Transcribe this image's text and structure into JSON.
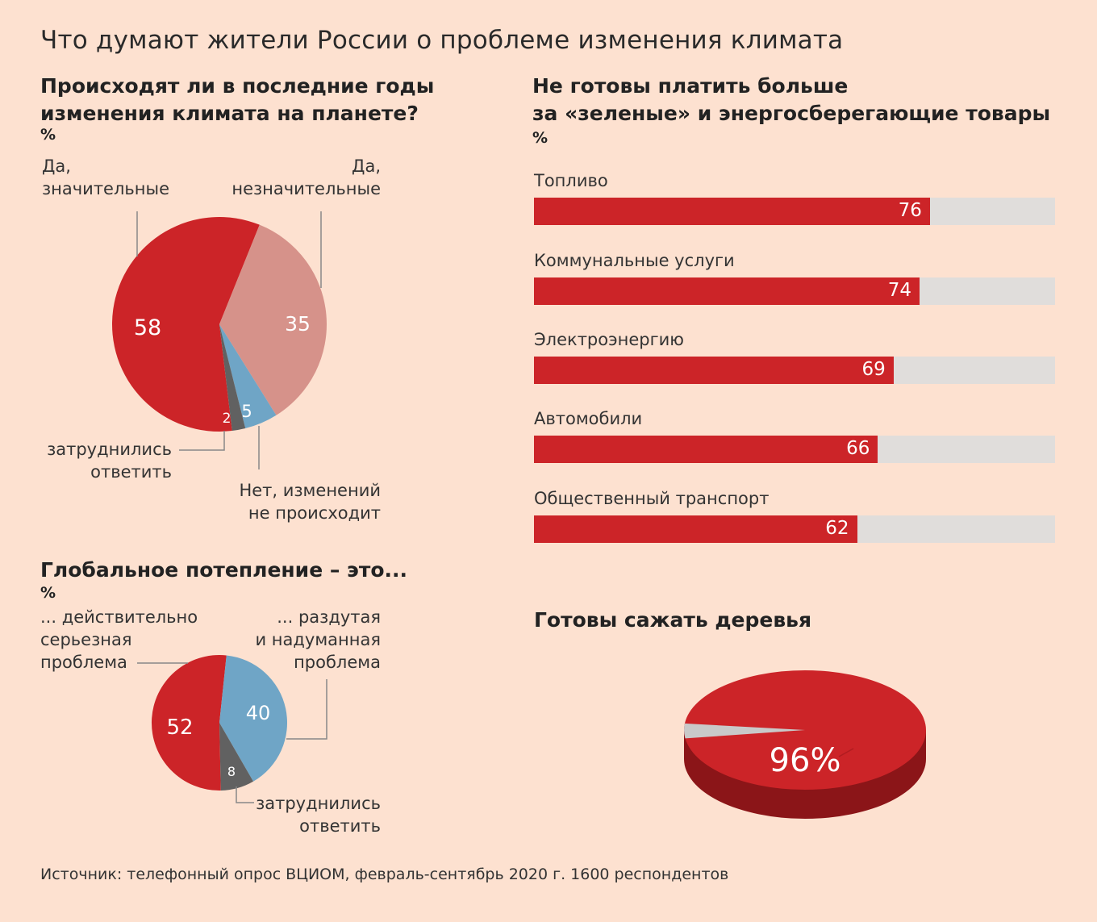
{
  "title": "Что думают жители России о проблеме изменения климата",
  "source": "Источник: телефонный опрос ВЦИОМ, февраль-сентябрь 2020 г. 1600 респондентов",
  "colors": {
    "background": "#fde1d0",
    "red": "#cc2428",
    "pink": "#d6928a",
    "blue": "#6fa5c6",
    "gray": "#616161",
    "track": "#e0dddb",
    "light_gray": "#c9c9c9",
    "dark_red": "#8b1518"
  },
  "chart_data": [
    {
      "type": "pie",
      "title_lines": [
        "Происходят ли в последние годы",
        "изменения климата на планете?"
      ],
      "unit": "%",
      "slices": [
        {
          "value_label": "58",
          "value": 58,
          "color": "#cc2428",
          "label_lines": [
            "Да,",
            "значительные"
          ]
        },
        {
          "value_label": "35",
          "value": 35,
          "color": "#d6928a",
          "label_lines": [
            "Да,",
            "незначительные"
          ]
        },
        {
          "value_label": "5",
          "value": 5,
          "color": "#6fa5c6",
          "label_lines": [
            "Нет, изменений",
            "не происходит"
          ]
        },
        {
          "value_label": "2",
          "value": 2,
          "color": "#616161",
          "label_lines": [
            "затруднились",
            "ответить"
          ]
        }
      ]
    },
    {
      "type": "bar",
      "title_lines": [
        "Не готовы платить больше",
        "за «зеленые» и энергосберегающие товары"
      ],
      "unit": "%",
      "categories": [
        "Топливо",
        "Коммунальные услуги",
        "Электроэнергию",
        "Автомобили",
        "Общественный транспорт"
      ],
      "values": [
        76,
        74,
        69,
        66,
        62
      ],
      "value_labels": [
        "76",
        "74",
        "69",
        "66",
        "62"
      ],
      "xlim": [
        0,
        100
      ]
    },
    {
      "type": "pie",
      "title": "Глобальное потепление – это...",
      "unit": "%",
      "slices": [
        {
          "value_label": "52",
          "value": 52,
          "color": "#cc2428",
          "label_lines": [
            "... действительно",
            "серьезная",
            "проблема"
          ]
        },
        {
          "value_label": "40",
          "value": 40,
          "color": "#6fa5c6",
          "label_lines": [
            "... раздутая",
            "и надуманная",
            "проблема"
          ]
        },
        {
          "value_label": "8",
          "value": 8,
          "color": "#616161",
          "label_lines": [
            "затруднились",
            "ответить"
          ]
        }
      ]
    },
    {
      "type": "pie",
      "title": "Готовы сажать деревья",
      "values": [
        96,
        4
      ],
      "value_label": "96%",
      "colors": [
        "#cc2428",
        "#c9c9c9"
      ]
    }
  ]
}
